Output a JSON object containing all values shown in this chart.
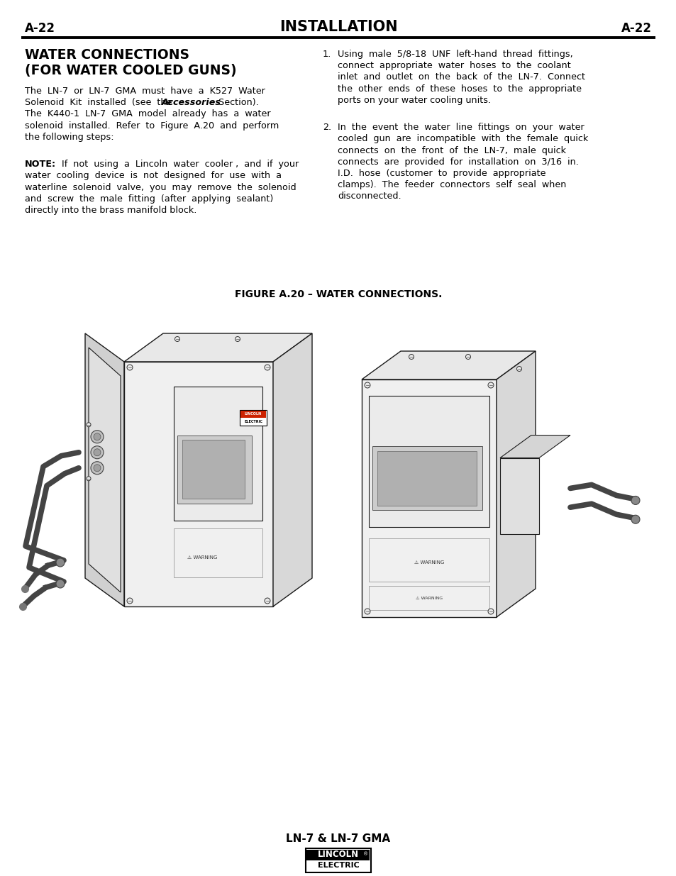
{
  "page_label_left": "A-22",
  "page_label_right": "A-22",
  "page_title": "INSTALLATION",
  "section_title_line1": "WATER CONNECTIONS",
  "section_title_line2": "(FOR WATER COOLED GUNS)",
  "para1_lines": [
    "The  LN-7  or  LN-7  GMA  must  have  a  K527  Water",
    "Solenoid  Kit  installed  (see  the  #Accessories#  Section).",
    "The  K440-1  LN-7  GMA  model  already  has  a  water",
    "solenoid  installed.  Refer  to  Figure  A.20  and  perform",
    "the following steps:"
  ],
  "note_lines": [
    "#NOTE:#  If  not  using  a  Lincoln  water  cooler ,  and  if  your",
    "water  cooling  device  is  not  designed  for  use  with  a",
    "waterline  solenoid  valve,  you  may  remove  the  solenoid",
    "and  screw  the  male  fitting  (after  applying  sealant)",
    "directly into the brass manifold block."
  ],
  "item1_lines": [
    "Using  male  5/8-18  UNF  left-hand  thread  fittings,",
    "connect  appropriate  water  hoses  to  the  coolant",
    "inlet  and  outlet  on  the  back  of  the  LN-7.  Connect",
    "the  other  ends  of  these  hoses  to  the  appropriate",
    "ports on your water cooling units."
  ],
  "item2_lines": [
    "In  the  event  the  water  line  fittings  on  your  water",
    "cooled  gun  are  incompatible  with  the  female  quick",
    "connects  on  the  front  of  the  LN-7,  male  quick",
    "connects  are  provided  for  installation  on  3/16  in.",
    "I.D.  hose  (customer  to  provide  appropriate",
    "clamps).  The  feeder  connectors  self  seal  when",
    "disconnected."
  ],
  "figure_caption": "FIGURE A.20 – WATER CONNECTIONS.",
  "footer_text": "LN-7 & LN-7 GMA",
  "bg_color": "#ffffff",
  "text_color": "#000000",
  "line_color": "#000000",
  "draw_color": "#1a1a1a",
  "face_color": "#f0f0f0",
  "side_color": "#d8d8d8",
  "top_color": "#e4e4e4"
}
